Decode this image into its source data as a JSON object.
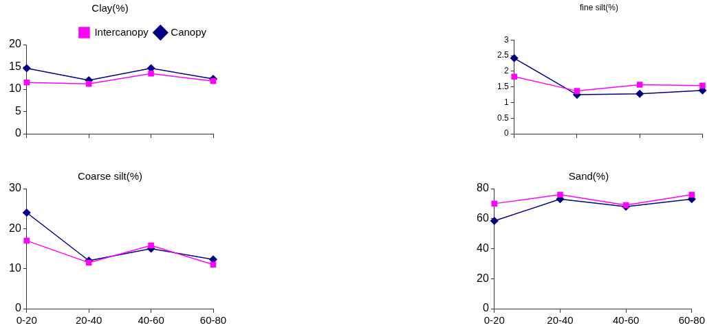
{
  "chart_data": [
    {
      "type": "line",
      "title": "Clay(%)",
      "categories": [
        null,
        null,
        null,
        null
      ],
      "ylim": [
        0,
        20
      ],
      "yticks": [
        0,
        5,
        10,
        15,
        20
      ],
      "grid": false,
      "legend": "top right",
      "series": [
        {
          "name": "Canopy",
          "color": "#000080",
          "marker": "diamond",
          "values": [
            14.7,
            12,
            14.7,
            12.3
          ]
        },
        {
          "name": "Intercanopy",
          "color": "#ff00ff",
          "marker": "square",
          "values": [
            11.5,
            11.2,
            13.5,
            11.8
          ]
        }
      ]
    },
    {
      "type": "line",
      "title": "fine silt(%)",
      "categories": [
        null,
        null,
        null,
        null
      ],
      "ylim": [
        0,
        3
      ],
      "yticks": [
        0,
        0.5,
        1,
        1.5,
        2,
        2.5,
        3
      ],
      "grid": false,
      "series": [
        {
          "color": "#000080",
          "marker": "diamond",
          "values": [
            2.42,
            1.25,
            1.28,
            1.39
          ]
        },
        {
          "color": "#ff00ff",
          "marker": "square",
          "values": [
            1.83,
            1.37,
            1.57,
            1.54
          ]
        }
      ]
    },
    {
      "type": "line",
      "title": "Coarse silt(%)",
      "categories": [
        "0-20",
        "20-40",
        "40-60",
        "60-80"
      ],
      "ylim": [
        0,
        30
      ],
      "yticks": [
        0,
        10,
        20,
        30
      ],
      "grid": false,
      "series": [
        {
          "color": "#000080",
          "marker": "diamond",
          "values": [
            24,
            12,
            15,
            12.3
          ]
        },
        {
          "color": "#ff00ff",
          "marker": "square",
          "values": [
            17,
            11.5,
            15.8,
            11
          ]
        }
      ]
    },
    {
      "type": "line",
      "title": "Sand(%)",
      "categories": [
        "0-20",
        "20-40",
        "40-60",
        "60-80"
      ],
      "ylim": [
        0,
        80
      ],
      "yticks": [
        0,
        20,
        40,
        60,
        80
      ],
      "grid": false,
      "series": [
        {
          "color": "#000080",
          "marker": "diamond",
          "values": [
            58.5,
            73,
            68,
            73
          ]
        },
        {
          "color": "#ff00ff",
          "marker": "square",
          "values": [
            70,
            76,
            69,
            76
          ]
        }
      ]
    }
  ]
}
